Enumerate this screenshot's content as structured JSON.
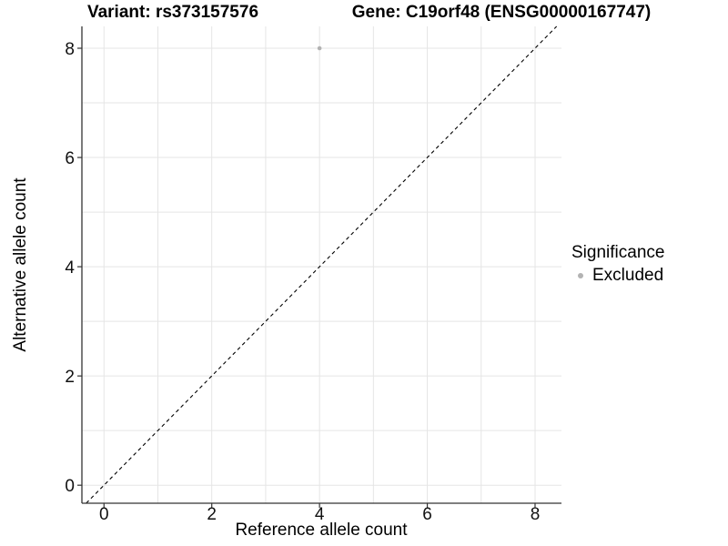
{
  "titles": {
    "left": "Variant: rs373157576",
    "right": "Gene: C19orf48 (ENSG00000167747)"
  },
  "chart_data": {
    "type": "scatter",
    "title": "Variant: rs373157576   Gene: C19orf48 (ENSG00000167747)",
    "xlabel": "Reference allele count",
    "ylabel": "Alternative allele count",
    "xlim": [
      -0.41,
      8.49
    ],
    "ylim": [
      -0.33,
      8.4
    ],
    "xticks": [
      0,
      2,
      4,
      6,
      8
    ],
    "yticks": [
      0,
      2,
      4,
      6,
      8
    ],
    "grid_step": 1,
    "grid": true,
    "points": [
      {
        "x": 4,
        "y": 8,
        "series": "Excluded"
      }
    ],
    "identity_line": {
      "slope": 1,
      "intercept": 0,
      "style": "dashed",
      "color": "#000000"
    },
    "legend": {
      "title": "Significance",
      "position": "right",
      "items": [
        {
          "label": "Excluded",
          "color": "#b3b3b3"
        }
      ]
    },
    "colors": {
      "point": "#b2b2b2",
      "grid": "#e5e5e5",
      "axis": "#333333",
      "tick_text": "#111111",
      "background": "#ffffff"
    }
  }
}
